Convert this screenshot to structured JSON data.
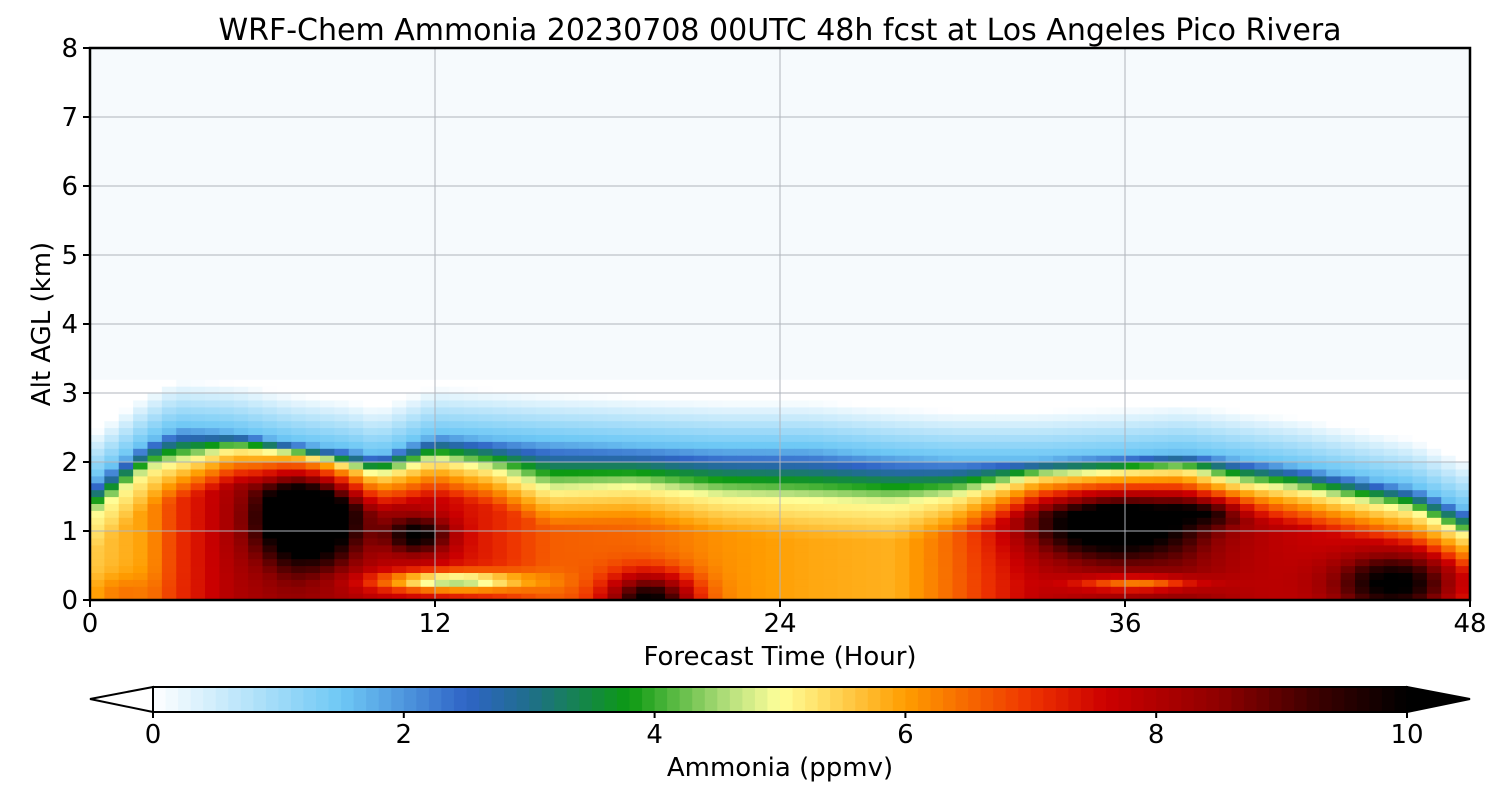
{
  "chart_data": {
    "type": "heatmap",
    "title": "WRF-Chem Ammonia  20230708 00UTC 48h fcst at Los Angeles Pico Rivera",
    "xlabel": "Forecast Time (Hour)",
    "ylabel": "Alt AGL (km)",
    "xlim": [
      0,
      48
    ],
    "ylim": [
      0,
      8
    ],
    "x_ticks": [
      0,
      12,
      24,
      36,
      48
    ],
    "y_ticks": [
      0,
      1,
      2,
      3,
      4,
      5,
      6,
      7,
      8
    ],
    "grid": true,
    "colorbar": {
      "label": "Ammonia  (ppmv)",
      "range": [
        0,
        10
      ],
      "ticks": [
        0,
        2,
        4,
        6,
        8,
        10
      ],
      "extend": "both",
      "orientation": "horizontal",
      "stops": [
        {
          "v": 0.0,
          "c": "#ffffff"
        },
        {
          "v": 1.5,
          "c": "#6ec8f5"
        },
        {
          "v": 2.5,
          "c": "#2f64c6"
        },
        {
          "v": 3.0,
          "c": "#1f6e8c"
        },
        {
          "v": 3.8,
          "c": "#0c9a12"
        },
        {
          "v": 4.6,
          "c": "#b7e07e"
        },
        {
          "v": 5.0,
          "c": "#ffff99"
        },
        {
          "v": 6.0,
          "c": "#ff9d00"
        },
        {
          "v": 7.0,
          "c": "#ee3300"
        },
        {
          "v": 7.6,
          "c": "#cc0000"
        },
        {
          "v": 8.5,
          "c": "#8f0000"
        },
        {
          "v": 9.3,
          "c": "#3a0000"
        },
        {
          "v": 10.0,
          "c": "#000000"
        }
      ]
    },
    "profiles": {
      "hours": [
        0,
        2,
        3,
        5,
        7,
        9,
        10,
        12,
        14,
        16,
        19,
        22,
        25,
        28,
        30,
        33,
        36,
        38,
        40,
        42,
        44,
        46,
        48
      ],
      "top_km": [
        1.2,
        1.9,
        2.0,
        2.2,
        2.1,
        1.9,
        1.8,
        2.05,
        1.9,
        1.6,
        1.65,
        1.5,
        1.45,
        1.4,
        1.5,
        1.8,
        1.85,
        1.9,
        1.7,
        1.6,
        1.45,
        1.3,
        0.9
      ],
      "edge_km": [
        1.7,
        2.3,
        2.5,
        2.45,
        2.3,
        2.2,
        2.1,
        2.4,
        2.35,
        2.3,
        2.25,
        2.2,
        2.2,
        2.1,
        2.05,
        2.05,
        2.1,
        2.15,
        2.05,
        1.95,
        1.8,
        1.65,
        1.3
      ],
      "blob_hours": [
        0,
        2,
        3,
        5,
        7,
        9,
        10,
        12,
        14,
        16,
        19,
        22,
        25,
        28,
        30,
        33,
        36,
        38,
        40,
        42,
        44,
        46,
        48
      ],
      "blob_base": [
        5.5,
        6.0,
        7.0,
        8.0,
        8.3,
        8.0,
        7.8,
        7.6,
        7.2,
        6.6,
        6.5,
        6.1,
        5.9,
        5.8,
        6.5,
        7.8,
        8.2,
        8.4,
        8.0,
        7.7,
        7.3,
        6.9,
        6.5
      ]
    },
    "blobs": [
      {
        "x": 7.6,
        "y": 1.2,
        "rx": 2.0,
        "ry": 0.75,
        "amp": 4.0
      },
      {
        "x": 11.4,
        "y": 0.95,
        "rx": 1.3,
        "ry": 0.32,
        "amp": 2.5
      },
      {
        "x": 35.5,
        "y": 1.1,
        "rx": 3.2,
        "ry": 0.55,
        "amp": 3.0
      },
      {
        "x": 39.0,
        "y": 1.3,
        "rx": 1.5,
        "ry": 0.25,
        "amp": 1.2
      },
      {
        "x": 19.5,
        "y": 0.0,
        "rx": 1.8,
        "ry": 0.45,
        "amp": 3.6
      },
      {
        "x": 45.5,
        "y": 0.25,
        "rx": 2.6,
        "ry": 0.55,
        "amp": 3.2
      },
      {
        "x": 12.5,
        "y": 0.28,
        "rx": 3.0,
        "ry": 0.17,
        "amp": -3.0
      },
      {
        "x": 36.5,
        "y": 0.25,
        "rx": 2.5,
        "ry": 0.13,
        "amp": -2.0
      },
      {
        "x": 1.0,
        "y": 0.1,
        "rx": 1.5,
        "ry": 0.3,
        "amp": 0.6
      }
    ]
  }
}
